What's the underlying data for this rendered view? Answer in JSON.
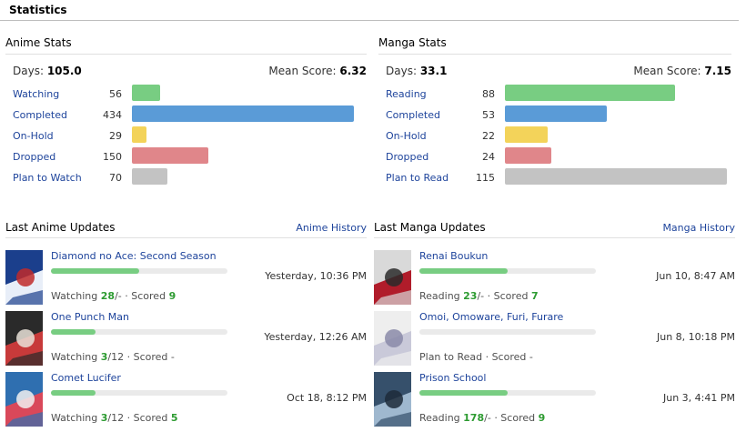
{
  "statistics_title": "Statistics",
  "anime": {
    "heading": "Anime Stats",
    "days_label": "Days:",
    "days_value": "105.0",
    "mean_label": "Mean Score:",
    "mean_value": "6.32",
    "statuses": [
      {
        "label": "Watching",
        "count": "56",
        "count_value": 56,
        "color": "#78cd82"
      },
      {
        "label": "Completed",
        "count": "434",
        "count_value": 434,
        "color": "#5a9bd7"
      },
      {
        "label": "On-Hold",
        "count": "29",
        "count_value": 29,
        "color": "#f3d35a"
      },
      {
        "label": "Dropped",
        "count": "150",
        "count_value": 150,
        "color": "#e0868a"
      },
      {
        "label": "Plan to Watch",
        "count": "70",
        "count_value": 70,
        "color": "#c3c3c3"
      }
    ]
  },
  "manga": {
    "heading": "Manga Stats",
    "days_label": "Days:",
    "days_value": "33.1",
    "mean_label": "Mean Score:",
    "mean_value": "7.15",
    "statuses": [
      {
        "label": "Reading",
        "count": "88",
        "count_value": 88,
        "color": "#78cd82"
      },
      {
        "label": "Completed",
        "count": "53",
        "count_value": 53,
        "color": "#5a9bd7"
      },
      {
        "label": "On-Hold",
        "count": "22",
        "count_value": 22,
        "color": "#f3d35a"
      },
      {
        "label": "Dropped",
        "count": "24",
        "count_value": 24,
        "color": "#e0868a"
      },
      {
        "label": "Plan to Read",
        "count": "115",
        "count_value": 115,
        "color": "#c3c3c3"
      }
    ]
  },
  "anime_updates": {
    "heading": "Last Anime Updates",
    "history_link": "Anime History",
    "items": [
      {
        "title": "Diamond no Ace: Second Season",
        "time": "Yesterday, 10:36 PM",
        "status": "Watching",
        "progress": "28",
        "total": "/-",
        "score_label": "· Scored",
        "score": "9",
        "progress_fraction": 0.5
      },
      {
        "title": "One Punch Man",
        "time": "Yesterday, 12:26 AM",
        "status": "Watching",
        "progress": "3",
        "total": "/12",
        "score_label": "· Scored",
        "score": "-",
        "progress_fraction": 0.25
      },
      {
        "title": "Comet Lucifer",
        "time": "Oct 18, 8:12 PM",
        "status": "Watching",
        "progress": "3",
        "total": "/12",
        "score_label": "· Scored",
        "score": "5",
        "progress_fraction": 0.25
      }
    ]
  },
  "manga_updates": {
    "heading": "Last Manga Updates",
    "history_link": "Manga History",
    "items": [
      {
        "title": "Renai Boukun",
        "time": "Jun 10, 8:47 AM",
        "status": "Reading",
        "progress": "23",
        "total": "/-",
        "score_label": "· Scored",
        "score": "7",
        "progress_fraction": 0.5
      },
      {
        "title": "Omoi, Omoware, Furi, Furare",
        "time": "Jun 8, 10:18 PM",
        "status": "Plan to Read",
        "progress": "",
        "total": "",
        "score_label": "· Scored",
        "score": "-",
        "progress_fraction": 0
      },
      {
        "title": "Prison School",
        "time": "Jun 3, 4:41 PM",
        "status": "Reading",
        "progress": "178",
        "total": "/-",
        "score_label": "· Scored",
        "score": "9",
        "progress_fraction": 0.5
      }
    ]
  }
}
